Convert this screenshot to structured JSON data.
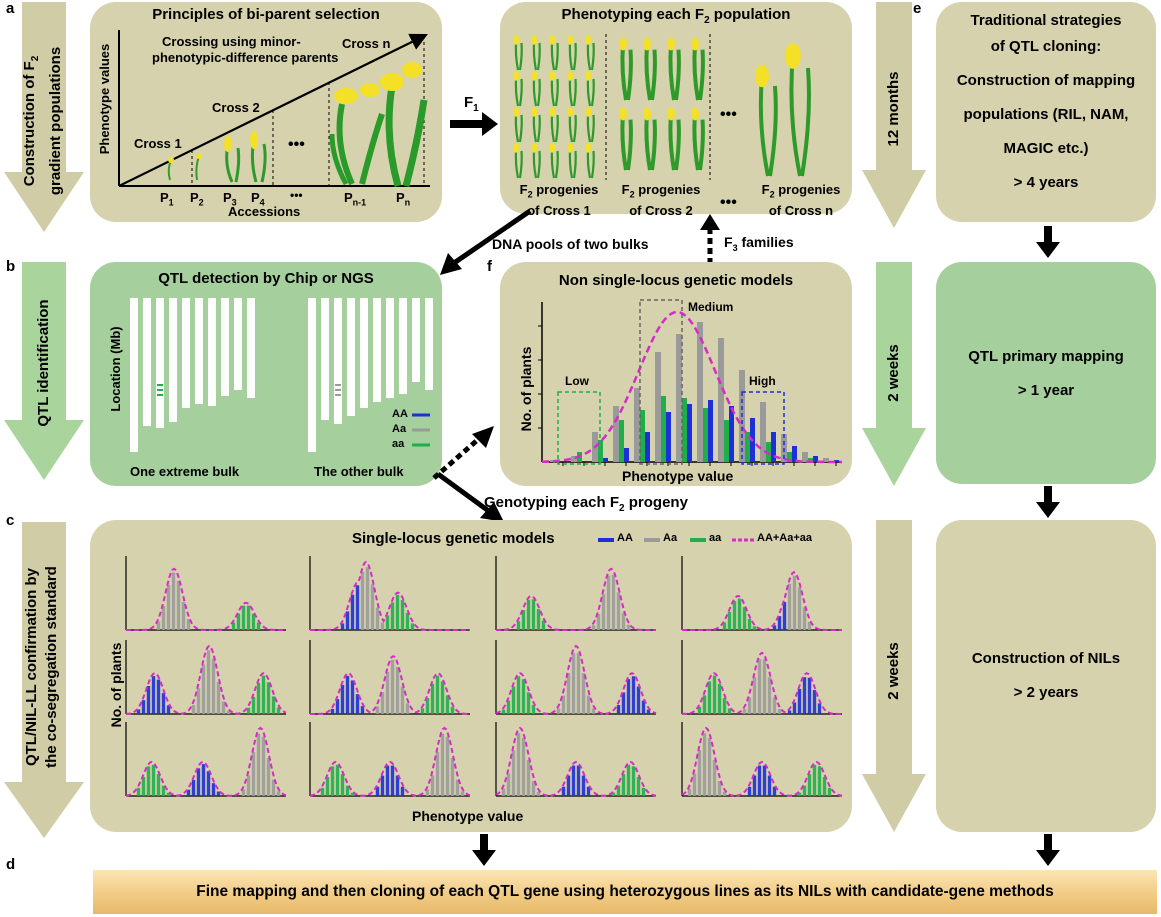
{
  "panel_labels": {
    "a": "a",
    "b": "b",
    "c": "c",
    "d": "d",
    "e": "e",
    "f": "f"
  },
  "side_arrows": {
    "a_line1": "Construction of  F",
    "a_line1_sub": "2",
    "a_line2": "gradient populations",
    "b_line1": "QTL identification",
    "c_line1": "QTL/NIL-LL confirmation by",
    "c_line2": "the co-segregation standard",
    "t1": "12 months",
    "t2": "2 weeks",
    "t3": "2 weeks"
  },
  "panel_a": {
    "title": "Principles of bi-parent selection",
    "ylabel": "Phenotype values",
    "xlabel": "Accessions",
    "crossing_line1": "Crossing using minor-",
    "crossing_line2": "phenotypic-difference  parents",
    "cross1": "Cross 1",
    "cross2": "Cross 2",
    "crossn": "Cross n",
    "dots": "•••",
    "parents": [
      "P",
      "P",
      "P",
      "P",
      "P",
      "P"
    ],
    "parent_subs": [
      "1",
      "2",
      "3",
      "4",
      "n-1",
      "n"
    ]
  },
  "flow": {
    "f1": "F",
    "f1_sub": "1",
    "dna_pools": "DNA pools of two bulks",
    "f3_families": "F",
    "f3_sub": "3",
    "f3_rest": " families",
    "genotyping": "Genotyping each F",
    "genotyping_sub": "2",
    "genotyping_rest": " progeny"
  },
  "panel_phenotyping": {
    "title": "Phenotyping each F",
    "title_sub": "2",
    "title_rest": " population",
    "groups": [
      {
        "l1": "F",
        "sub": "2",
        "l1_rest": " progenies",
        "l2": "of Cross 1"
      },
      {
        "l1": "F",
        "sub": "2",
        "l1_rest": " progenies",
        "l2": "of Cross 2"
      },
      {
        "l1": "F",
        "sub": "2",
        "l1_rest": " progenies",
        "l2": "of Cross n"
      }
    ],
    "dots": "•••"
  },
  "panel_b": {
    "title": "QTL detection by Chip or NGS",
    "ylabel": "Location (Mb)",
    "bulk1": "One extreme bulk",
    "bulk2": "The other bulk",
    "legend": [
      "AA",
      "Aa",
      "aa"
    ],
    "colors": {
      "AA": "#1d2fd6",
      "Aa": "#9a9a9a",
      "aa": "#1fae4a"
    }
  },
  "panel_f": {
    "title": "Non single-locus genetic models",
    "ylabel": "No. of plants",
    "xlabel": "Phenotype value",
    "low": "Low",
    "medium": "Medium",
    "high": "High"
  },
  "panel_c": {
    "title": "Single-locus genetic models",
    "legend": [
      "AA",
      "Aa",
      "aa",
      "AA+Aa+aa"
    ],
    "ylabel": "No. of plants",
    "xlabel": "Phenotype value"
  },
  "panel_e": {
    "box1_lines": [
      "Traditional strategies",
      "of QTL cloning:",
      "Construction of mapping",
      "populations (RIL, NAM,",
      "MAGIC etc.)",
      "> 4 years"
    ],
    "box2_lines": [
      "QTL primary mapping",
      "> 1 year"
    ],
    "box3_lines": [
      "Construction of NILs",
      "> 2 years"
    ]
  },
  "banner": "Fine mapping and then cloning of each QTL gene using heterozygous lines as its NILs with candidate-gene methods",
  "colors": {
    "tan": "#d6d2ad",
    "green": "#a6cf9e",
    "magenta": "#d62bc8",
    "arrow_tan": "#cfcca6",
    "arrow_green": "#a9d49c"
  }
}
